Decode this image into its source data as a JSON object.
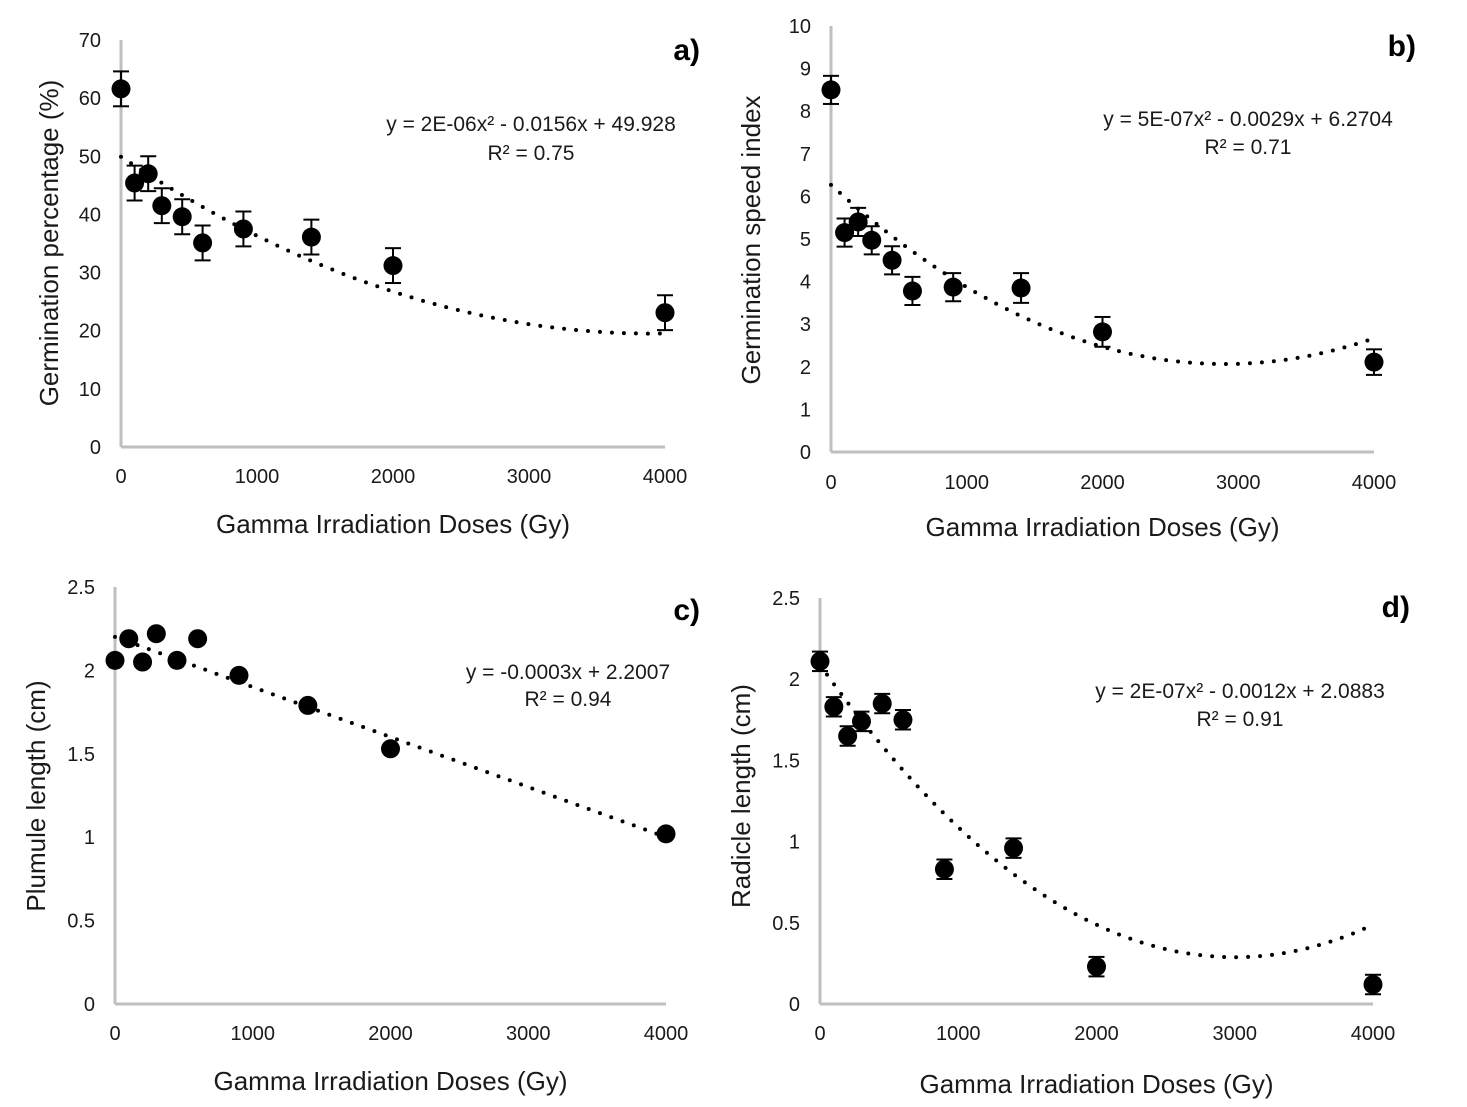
{
  "chart_data": [
    {
      "id": "a",
      "type": "scatter",
      "panel_label": "a)",
      "xlabel": "Gamma Irradiation Doses (Gy)",
      "ylabel": "Germination percentage (%)",
      "xlim": [
        0,
        4000
      ],
      "ylim": [
        0,
        70
      ],
      "xticks": [
        0,
        1000,
        2000,
        3000,
        4000
      ],
      "yticks": [
        0,
        10,
        20,
        30,
        40,
        50,
        60,
        70
      ],
      "grid": false,
      "x": [
        0,
        100,
        200,
        300,
        450,
        600,
        900,
        1400,
        2000,
        4000
      ],
      "y": [
        61.6,
        45.4,
        47.0,
        41.5,
        39.6,
        35.1,
        37.5,
        36.1,
        31.2,
        23.1
      ],
      "error": [
        3.0,
        3.0,
        3.0,
        3.0,
        3.0,
        3.0,
        3.0,
        3.0,
        3.0,
        3.0
      ],
      "trendline": {
        "type": "polynomial",
        "coefficients": [
          2e-06,
          -0.0156,
          49.928
        ],
        "style": "dotted"
      },
      "equation": "y = 2E-06x² - 0.0156x + 49.928",
      "r2": "R² = 0.75"
    },
    {
      "id": "b",
      "type": "scatter",
      "panel_label": "b)",
      "xlabel": "Gamma Irradiation Doses (Gy)",
      "ylabel": "Germination speed index",
      "xlim": [
        0,
        4000
      ],
      "ylim": [
        0,
        10
      ],
      "xticks": [
        0,
        1000,
        2000,
        3000,
        4000
      ],
      "yticks": [
        0,
        1,
        2,
        3,
        4,
        5,
        6,
        7,
        8,
        9,
        10
      ],
      "grid": false,
      "x": [
        0,
        100,
        200,
        300,
        450,
        600,
        900,
        1400,
        2000,
        4000
      ],
      "y": [
        8.5,
        5.15,
        5.4,
        4.97,
        4.5,
        3.78,
        3.87,
        3.85,
        2.82,
        2.11
      ],
      "error": [
        0.33,
        0.33,
        0.33,
        0.33,
        0.33,
        0.33,
        0.33,
        0.35,
        0.35,
        0.3
      ],
      "trendline": {
        "type": "polynomial",
        "coefficients": [
          5e-07,
          -0.0029,
          6.2704
        ],
        "style": "dotted"
      },
      "equation": "y = 5E-07x² - 0.0029x + 6.2704",
      "r2": "R² = 0.71"
    },
    {
      "id": "c",
      "type": "scatter",
      "panel_label": "c)",
      "xlabel": "Gamma Irradiation Doses (Gy)",
      "ylabel": "Plumule length (cm)",
      "xlim": [
        0,
        4000
      ],
      "ylim": [
        0,
        2.5
      ],
      "xticks": [
        0,
        1000,
        2000,
        3000,
        4000
      ],
      "yticks": [
        0,
        0.5,
        1,
        1.5,
        2,
        2.5
      ],
      "grid": false,
      "x": [
        0,
        100,
        200,
        300,
        450,
        600,
        900,
        1400,
        2000,
        4000
      ],
      "y": [
        2.06,
        2.19,
        2.05,
        2.22,
        2.06,
        2.19,
        1.97,
        1.79,
        1.53,
        1.02
      ],
      "error": [
        0.02,
        0.02,
        0.02,
        0.02,
        0.02,
        0.02,
        0.02,
        0.02,
        0.02,
        0.02
      ],
      "trendline": {
        "type": "polynomial",
        "coefficients": [
          0,
          -0.0003,
          2.2007
        ],
        "style": "dotted"
      },
      "equation": "y = -0.0003x + 2.2007",
      "r2": "R² = 0.94"
    },
    {
      "id": "d",
      "type": "scatter",
      "panel_label": "d)",
      "xlabel": "Gamma Irradiation Doses (Gy)",
      "ylabel": "Radicle length (cm)",
      "xlim": [
        0,
        4000
      ],
      "ylim": [
        0,
        2.5
      ],
      "xticks": [
        0,
        1000,
        2000,
        3000,
        4000
      ],
      "yticks": [
        0,
        0.5,
        1,
        1.5,
        2,
        2.5
      ],
      "grid": false,
      "x": [
        0,
        100,
        200,
        300,
        450,
        600,
        900,
        1400,
        2000,
        4000
      ],
      "y": [
        2.11,
        1.83,
        1.65,
        1.74,
        1.85,
        1.75,
        0.83,
        0.96,
        0.23,
        0.12
      ],
      "error": [
        0.06,
        0.06,
        0.06,
        0.06,
        0.06,
        0.06,
        0.06,
        0.06,
        0.06,
        0.06
      ],
      "trendline": {
        "type": "polynomial",
        "coefficients": [
          2e-07,
          -0.0012,
          2.0883
        ],
        "style": "dotted"
      },
      "equation": "y = 2E-07x² - 0.0012x + 2.0883",
      "r2": "R² = 0.91"
    }
  ]
}
